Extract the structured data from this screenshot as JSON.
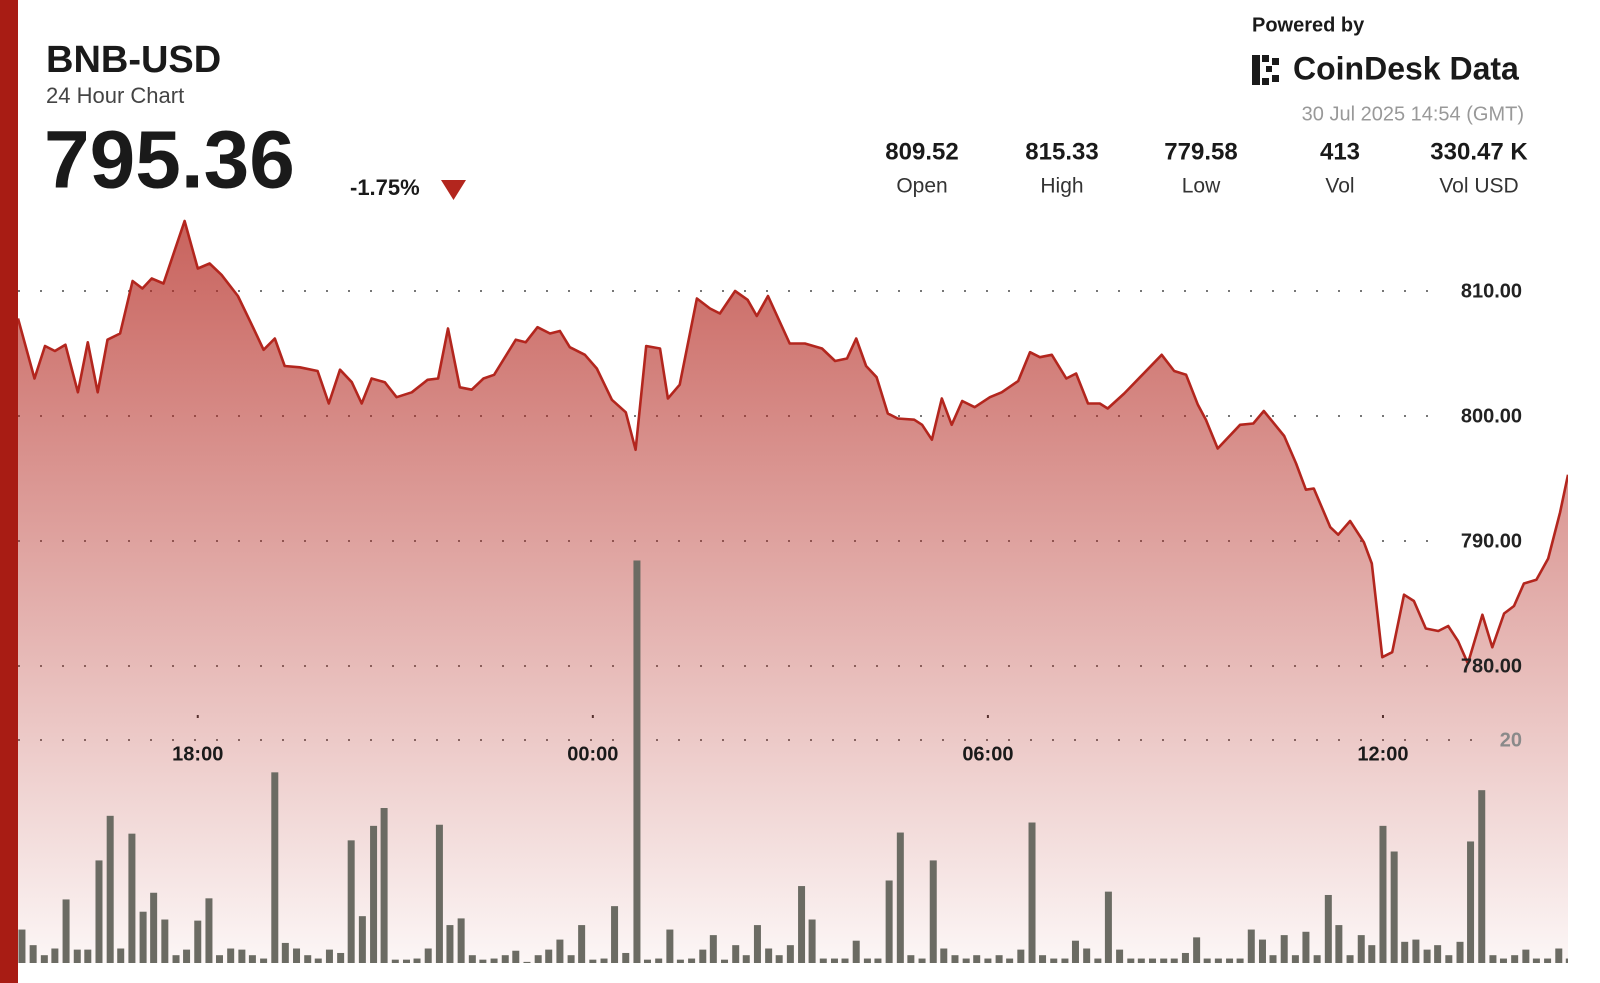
{
  "header": {
    "symbol": "BNB-USD",
    "subtitle": "24 Hour Chart",
    "price": "795.36",
    "change": "-1.75%",
    "stats": [
      {
        "value": "809.52",
        "label": "Open"
      },
      {
        "value": "815.33",
        "label": "High"
      },
      {
        "value": "779.58",
        "label": "Low"
      },
      {
        "value": "413",
        "label": "Vol"
      },
      {
        "value": "330.47 K",
        "label": "Vol USD"
      }
    ],
    "powered_by": "Powered by",
    "brand": "CoinDesk Data",
    "timestamp": "30 Jul 2025 14:54 (GMT)"
  },
  "chart_data": {
    "type": "area",
    "color": "#b3261e",
    "grid": true,
    "xlim": [
      15.27,
      38.81
    ],
    "xticks": [
      {
        "value": 18,
        "label": "18:00"
      },
      {
        "value": 24,
        "label": "00:00"
      },
      {
        "value": 30,
        "label": "06:00"
      },
      {
        "value": 36,
        "label": "12:00"
      }
    ],
    "ylim": [
      756.24,
      817.28
    ],
    "yticks": [
      {
        "value": 780,
        "label": "780.00"
      },
      {
        "value": 790,
        "label": "790.00"
      },
      {
        "value": 800,
        "label": "800.00"
      },
      {
        "value": 810,
        "label": "810.00"
      }
    ],
    "y2lim": [
      0,
      40
    ],
    "y2ticks": [
      20
    ],
    "x": [
      15.27,
      15.52,
      15.68,
      15.83,
      15.99,
      16.18,
      16.33,
      16.48,
      16.63,
      16.82,
      17.01,
      17.16,
      17.3,
      17.48,
      17.8,
      18.0,
      18.18,
      18.36,
      18.61,
      18.82,
      19.0,
      19.17,
      19.32,
      19.55,
      19.82,
      19.99,
      20.16,
      20.34,
      20.49,
      20.64,
      20.84,
      21.02,
      21.25,
      21.49,
      21.65,
      21.8,
      21.98,
      22.16,
      22.34,
      22.5,
      22.83,
      22.98,
      23.16,
      23.35,
      23.5,
      23.65,
      23.88,
      24.06,
      24.29,
      24.5,
      24.65,
      24.81,
      25.02,
      25.14,
      25.32,
      25.58,
      25.78,
      25.93,
      26.16,
      26.35,
      26.49,
      26.66,
      26.99,
      27.22,
      27.48,
      27.68,
      27.86,
      28.0,
      28.15,
      28.31,
      28.48,
      28.63,
      28.88,
      29.0,
      29.15,
      29.3,
      29.45,
      29.61,
      29.8,
      30.03,
      30.21,
      30.46,
      30.64,
      30.79,
      30.97,
      31.19,
      31.34,
      31.52,
      31.7,
      31.82,
      32.07,
      32.31,
      32.64,
      32.83,
      33.01,
      33.19,
      33.31,
      33.49,
      33.83,
      34.03,
      34.19,
      34.5,
      34.68,
      34.83,
      34.95,
      35.2,
      35.32,
      35.5,
      35.71,
      35.83,
      35.99,
      36.14,
      36.32,
      36.47,
      36.65,
      36.84,
      36.99,
      37.14,
      37.29,
      37.51,
      37.66,
      37.84,
      37.99,
      38.14,
      38.33,
      38.51,
      38.69,
      38.81
    ],
    "values": [
      807.8,
      803.0,
      805.6,
      805.2,
      805.7,
      801.9,
      805.9,
      801.9,
      806.1,
      806.6,
      810.8,
      810.2,
      811.0,
      810.6,
      815.6,
      811.8,
      812.2,
      811.3,
      809.6,
      807.3,
      805.3,
      806.2,
      804.0,
      803.9,
      803.6,
      801.0,
      803.7,
      802.7,
      801.0,
      803.0,
      802.7,
      801.5,
      801.9,
      802.9,
      803.0,
      807.0,
      802.3,
      802.1,
      803.0,
      803.3,
      806.1,
      805.9,
      807.1,
      806.6,
      806.8,
      805.5,
      804.9,
      803.8,
      801.3,
      800.3,
      797.3,
      805.6,
      805.4,
      801.4,
      802.5,
      809.4,
      808.6,
      808.2,
      810.0,
      809.3,
      808.0,
      809.6,
      805.8,
      805.8,
      805.4,
      804.4,
      804.6,
      806.2,
      804.0,
      803.1,
      800.2,
      799.8,
      799.7,
      799.3,
      798.1,
      801.4,
      799.3,
      801.2,
      800.7,
      801.5,
      801.9,
      802.8,
      805.1,
      804.7,
      804.9,
      803.0,
      803.4,
      801.0,
      801.0,
      800.6,
      801.8,
      803.1,
      804.9,
      803.6,
      803.3,
      800.9,
      799.7,
      797.4,
      799.3,
      799.4,
      800.4,
      798.4,
      796.2,
      794.1,
      794.2,
      791.1,
      790.5,
      791.6,
      789.9,
      788.2,
      780.7,
      781.1,
      785.7,
      785.2,
      783.0,
      782.8,
      783.2,
      782.0,
      780.2,
      784.1,
      781.5,
      784.2,
      784.8,
      786.6,
      786.9,
      788.6,
      792.3,
      795.3
    ],
    "volume": {
      "axis": "y2",
      "color": "#6b6b63",
      "x": [
        15.17,
        15.33,
        15.5,
        15.67,
        15.83,
        16,
        16.17,
        16.33,
        16.5,
        16.67,
        16.83,
        17,
        17.17,
        17.33,
        17.5,
        17.67,
        17.83,
        18,
        18.17,
        18.33,
        18.5,
        18.67,
        18.83,
        19,
        19.17,
        19.33,
        19.5,
        19.67,
        19.83,
        20,
        20.17,
        20.33,
        20.5,
        20.67,
        20.83,
        21,
        21.17,
        21.33,
        21.5,
        21.67,
        21.83,
        22,
        22.17,
        22.33,
        22.5,
        22.67,
        22.83,
        23,
        23.17,
        23.33,
        23.5,
        23.67,
        23.83,
        24,
        24.17,
        24.33,
        24.5,
        24.67,
        24.83,
        25,
        25.17,
        25.33,
        25.5,
        25.67,
        25.83,
        26,
        26.17,
        26.33,
        26.5,
        26.67,
        26.83,
        27,
        27.17,
        27.33,
        27.5,
        27.67,
        27.83,
        28,
        28.17,
        28.33,
        28.5,
        28.67,
        28.83,
        29,
        29.17,
        29.33,
        29.5,
        29.67,
        29.83,
        30,
        30.17,
        30.33,
        30.5,
        30.67,
        30.83,
        31,
        31.17,
        31.33,
        31.5,
        31.67,
        31.83,
        32,
        32.17,
        32.33,
        32.5,
        32.67,
        32.83,
        33,
        33.17,
        33.33,
        33.5,
        33.67,
        33.83,
        34,
        34.17,
        34.33,
        34.5,
        34.67,
        34.83,
        35,
        35.17,
        35.33,
        35.5,
        35.67,
        35.83,
        36,
        36.17,
        36.33,
        36.5,
        36.67,
        36.83,
        37,
        37.17,
        37.33,
        37.5,
        37.67,
        37.83,
        38,
        38.17,
        38.33,
        38.5,
        38.67,
        38.83
      ],
      "values": [
        3.4,
        3.0,
        1.6,
        0.7,
        1.3,
        5.7,
        1.2,
        1.2,
        9.2,
        13.2,
        1.3,
        11.6,
        4.6,
        6.3,
        3.9,
        0.7,
        1.2,
        3.8,
        5.8,
        0.7,
        1.3,
        1.2,
        0.7,
        0.4,
        17.1,
        1.8,
        1.3,
        0.7,
        0.4,
        1.2,
        0.9,
        11.0,
        4.2,
        12.3,
        13.9,
        0.3,
        0.3,
        0.4,
        1.3,
        12.4,
        3.4,
        4.0,
        0.7,
        0.3,
        0.4,
        0.7,
        1.1,
        0.1,
        0.7,
        1.2,
        2.1,
        0.7,
        3.4,
        0.3,
        0.4,
        5.1,
        0.9,
        36.1,
        0.3,
        0.4,
        3.0,
        0.3,
        0.4,
        1.2,
        2.5,
        0.3,
        1.6,
        0.7,
        3.4,
        1.3,
        0.7,
        1.6,
        6.9,
        3.9,
        0.4,
        0.4,
        0.4,
        2.0,
        0.4,
        0.4,
        7.4,
        11.7,
        0.7,
        0.4,
        9.2,
        1.3,
        0.7,
        0.4,
        0.7,
        0.4,
        0.7,
        0.4,
        1.2,
        12.6,
        0.7,
        0.4,
        0.4,
        2.0,
        1.3,
        0.4,
        6.4,
        1.2,
        0.4,
        0.4,
        0.4,
        0.4,
        0.4,
        0.9,
        2.3,
        0.4,
        0.4,
        0.4,
        0.4,
        3.0,
        2.1,
        0.7,
        2.5,
        0.7,
        2.8,
        0.7,
        6.1,
        3.4,
        0.7,
        2.5,
        1.6,
        12.3,
        10.0,
        1.9,
        2.1,
        1.2,
        1.6,
        0.7,
        1.9,
        10.9,
        15.5,
        0.7,
        0.4,
        0.7,
        1.2,
        0.4,
        0.4,
        1.3,
        0.4
      ]
    }
  }
}
